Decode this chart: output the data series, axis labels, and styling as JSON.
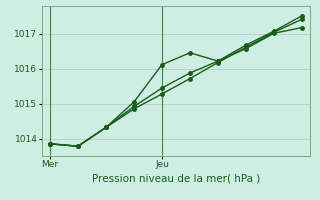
{
  "title": "Pression niveau de la mer( hPa )",
  "bg_color": "#ceeee4",
  "grid_color": "#b8ccc8",
  "line_color": "#1a5c1a",
  "ylim": [
    1013.5,
    1017.8
  ],
  "yticks": [
    1014,
    1015,
    1016,
    1017
  ],
  "fig_bg": "#ceeee4",
  "x_ticks_pos": [
    0,
    4
  ],
  "x_tick_labels": [
    "Mer",
    "Jeu"
  ],
  "series1_x": [
    0,
    1,
    2,
    3,
    4,
    5,
    6,
    7,
    8,
    9
  ],
  "series1_y": [
    1013.85,
    1013.78,
    1014.32,
    1015.05,
    1016.12,
    1016.46,
    1016.22,
    1016.58,
    1017.02,
    1017.18
  ],
  "series2_x": [
    0,
    1,
    2,
    3,
    4,
    5,
    6,
    7,
    8,
    9
  ],
  "series2_y": [
    1013.85,
    1013.78,
    1014.32,
    1014.85,
    1015.28,
    1015.72,
    1016.18,
    1016.62,
    1017.05,
    1017.42
  ],
  "series3_x": [
    0,
    1,
    2,
    3,
    4,
    5,
    6,
    7,
    8,
    9
  ],
  "series3_y": [
    1013.85,
    1013.78,
    1014.32,
    1014.92,
    1015.45,
    1015.88,
    1016.22,
    1016.68,
    1017.08,
    1017.52
  ],
  "marker_size": 2.5,
  "line_width": 1.0,
  "vline_x": [
    0,
    4
  ]
}
